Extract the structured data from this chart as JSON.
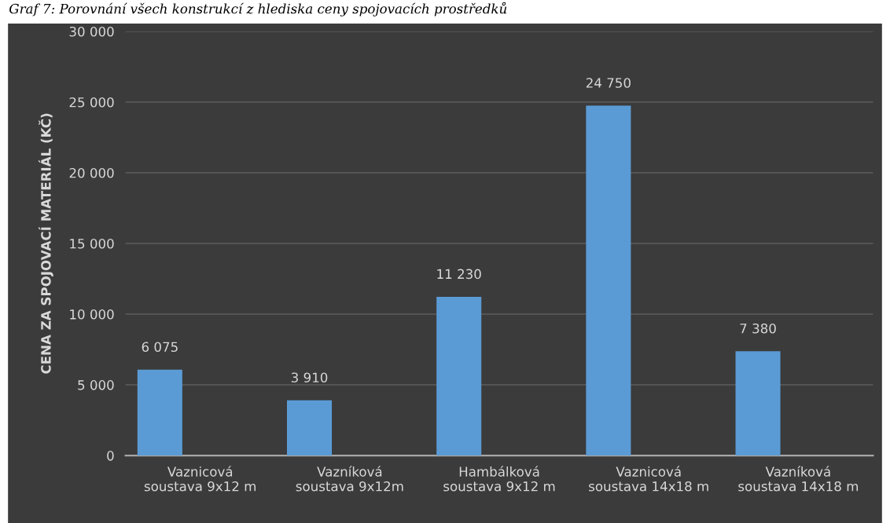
{
  "chart_data": {
    "type": "bar",
    "title": "Graf 7: Porovnání všech konstrukcí z hlediska ceny spojovacích prostředků",
    "ylabel": "CENA ZA SPOJOVACÍ MATERIÁL (KČ)",
    "categories": [
      "Vaznicová\nsoustava 9x12 m",
      "Vazníková\nsoustava 9x12m",
      "Hambálková\nsoustava 9x12 m",
      "Vaznicová\nsoustava 14x18 m",
      "Vazníková\nsoustava 14x18 m"
    ],
    "values": [
      6075,
      3910,
      11230,
      24750,
      7380
    ],
    "value_labels": [
      "6 075",
      "3 910",
      "11 230",
      "24 750",
      "7 380"
    ],
    "color": "#5b9bd5",
    "ylim": [
      0,
      30000
    ],
    "yticks": [
      {
        "value": 0,
        "label": "0"
      },
      {
        "value": 5000,
        "label": "5 000"
      },
      {
        "value": 10000,
        "label": "10 000"
      },
      {
        "value": 15000,
        "label": "15 000"
      },
      {
        "value": 20000,
        "label": "20 000"
      },
      {
        "value": 25000,
        "label": "25 000"
      },
      {
        "value": 30000,
        "label": "30 000"
      }
    ],
    "grid": "y",
    "legend": false
  }
}
